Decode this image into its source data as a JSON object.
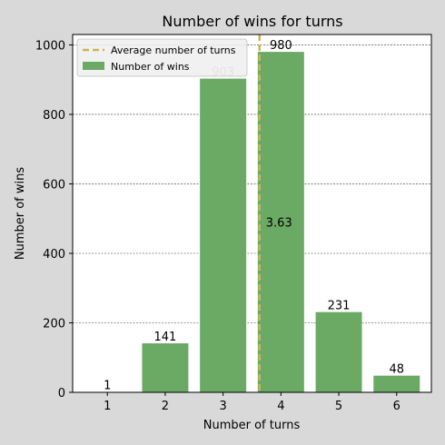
{
  "chart_data": {
    "type": "bar",
    "title": "Number of wins for turns",
    "xlabel": "Number of turns",
    "ylabel": "Number of wins",
    "categories": [
      "1",
      "2",
      "3",
      "4",
      "5",
      "6"
    ],
    "series": [
      {
        "name": "Number of wins",
        "values": [
          1,
          141,
          903,
          980,
          231,
          48
        ],
        "color": "#6aaa64"
      }
    ],
    "data_labels": [
      "1",
      "141",
      "903",
      "980",
      "231",
      "48"
    ],
    "ylim": [
      0,
      1030
    ],
    "yticks": [
      0,
      200,
      400,
      600,
      800,
      1000
    ],
    "grid": "horizontal-dashed",
    "average_line": {
      "label": "Average number of turns",
      "value": 3.63,
      "annotation": "3.63",
      "color": "#c9b458"
    },
    "legend": {
      "placement": "top-left",
      "entries": [
        "Average number of turns",
        "Number of wins"
      ]
    }
  }
}
